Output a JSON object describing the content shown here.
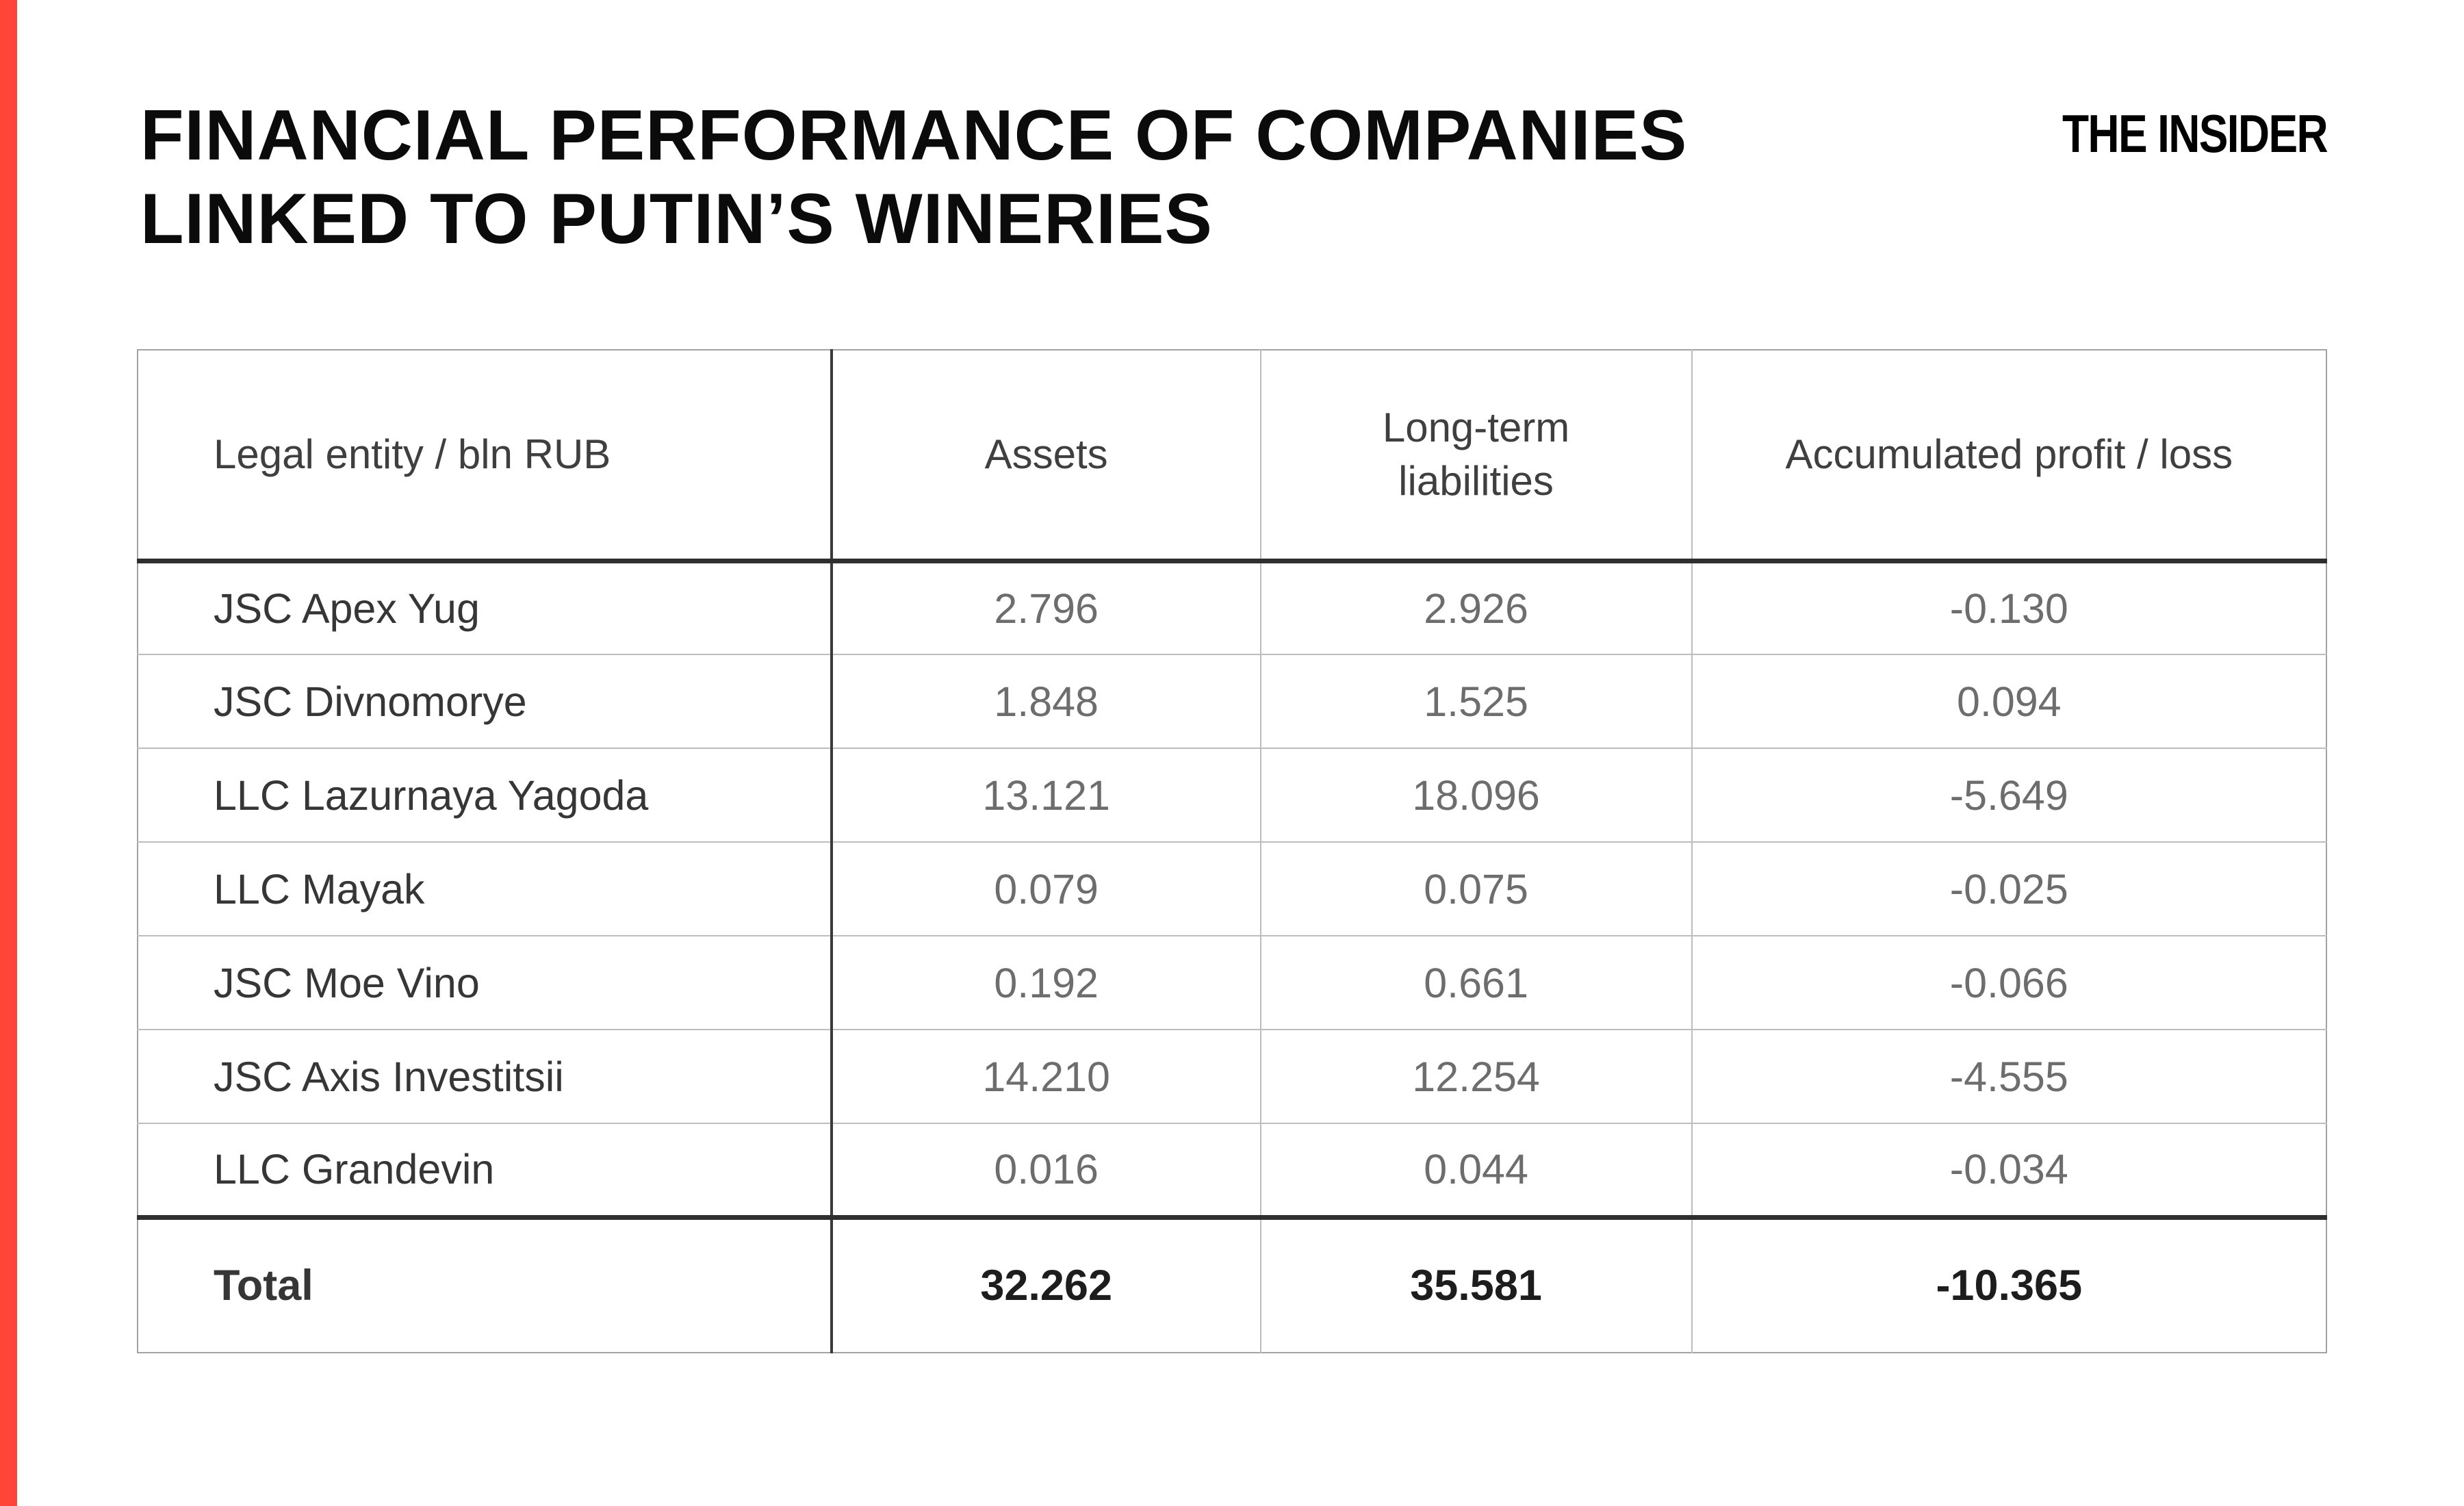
{
  "header": {
    "title_line1": "FINANCIAL PERFORMANCE OF COMPANIES",
    "title_line2": "LINKED TO PUTIN’S WINERIES",
    "brand": "THE INSIDER"
  },
  "colors": {
    "accent_red": "#ff4438",
    "title_text": "#0b0b0b",
    "column_header_text": "#3f3f3f",
    "entity_text": "#363636",
    "number_text": "#6d6d6d",
    "total_text": "#1d1d1d",
    "grid_light": "#bdbdbd",
    "grid_dark": "#2f2f2f"
  },
  "chart_data": {
    "type": "table",
    "title": "FINANCIAL PERFORMANCE OF COMPANIES LINKED TO PUTIN’S WINERIES",
    "columns": [
      "Legal entity / bln RUB",
      "Assets",
      "Long-term liabilities",
      "Accumulated profit / loss"
    ],
    "rows": [
      [
        "JSC Apex Yug",
        "2.796",
        "2.926",
        "-0.130"
      ],
      [
        "JSC Divnomorye",
        "1.848",
        "1.525",
        "0.094"
      ],
      [
        "LLC Lazurnaya Yagoda",
        "13.121",
        "18.096",
        "-5.649"
      ],
      [
        "LLC Mayak",
        "0.079",
        "0.075",
        "-0.025"
      ],
      [
        "JSC Moe Vino",
        "0.192",
        "0.661",
        "-0.066"
      ],
      [
        "JSC Axis Investitsii",
        "14.210",
        "12.254",
        "-4.555"
      ],
      [
        "LLC Grandevin",
        "0.016",
        "0.044",
        "-0.034"
      ]
    ],
    "total_row": [
      "Total",
      "32.262",
      "35.581",
      "-10.365"
    ]
  }
}
